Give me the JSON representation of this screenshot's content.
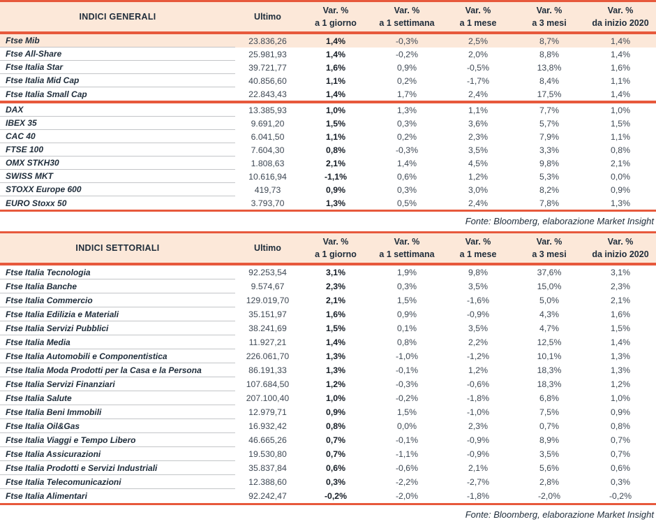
{
  "colors": {
    "accent_orange": "#e7593c",
    "header_peach": "#fce8d9",
    "highlight_row_peach": "#fce8d9",
    "text_dark_navy": "#1e2c3a",
    "divider_gray": "#c3c5c8"
  },
  "tables": [
    {
      "title": "INDICI GENERALI",
      "ultimo_header": "Ultimo",
      "var_headers": [
        {
          "top": "Var. %",
          "bottom": "a 1 giorno"
        },
        {
          "top": "Var. %",
          "bottom": "a 1 settimana"
        },
        {
          "top": "Var. %",
          "bottom": "a 1 mese"
        },
        {
          "top": "Var. %",
          "bottom": "a 3 mesi"
        },
        {
          "top": "Var. %",
          "bottom": "da inizio 2020"
        }
      ],
      "source": "Fonte: Bloomberg, elaborazione Market Insight",
      "groups": [
        {
          "rows": [
            {
              "label": "Ftse Mib",
              "ultimo": "23.836,26",
              "values": [
                "1,4%",
                "-0,3%",
                "2,5%",
                "8,7%",
                "1,4%"
              ],
              "highlight": true
            },
            {
              "label": "Ftse All-Share",
              "ultimo": "25.981,93",
              "values": [
                "1,4%",
                "-0,2%",
                "2,0%",
                "8,8%",
                "1,4%"
              ]
            },
            {
              "label": "Ftse Italia Star",
              "ultimo": "39.721,77",
              "values": [
                "1,6%",
                "0,9%",
                "-0,5%",
                "13,8%",
                "1,6%"
              ]
            },
            {
              "label": "Ftse Italia Mid Cap",
              "ultimo": "40.856,60",
              "values": [
                "1,1%",
                "0,2%",
                "-1,7%",
                "8,4%",
                "1,1%"
              ]
            },
            {
              "label": "Ftse Italia Small Cap",
              "ultimo": "22.843,43",
              "values": [
                "1,4%",
                "1,7%",
                "2,4%",
                "17,5%",
                "1,4%"
              ]
            }
          ]
        },
        {
          "rows": [
            {
              "label": "DAX",
              "ultimo": "13.385,93",
              "values": [
                "1,0%",
                "1,3%",
                "1,1%",
                "7,7%",
                "1,0%"
              ]
            },
            {
              "label": "IBEX 35",
              "ultimo": "9.691,20",
              "values": [
                "1,5%",
                "0,3%",
                "3,6%",
                "5,7%",
                "1,5%"
              ]
            },
            {
              "label": "CAC 40",
              "ultimo": "6.041,50",
              "values": [
                "1,1%",
                "0,2%",
                "2,3%",
                "7,9%",
                "1,1%"
              ]
            },
            {
              "label": "FTSE 100",
              "ultimo": "7.604,30",
              "values": [
                "0,8%",
                "-0,3%",
                "3,5%",
                "3,3%",
                "0,8%"
              ]
            },
            {
              "label": "OMX STKH30",
              "ultimo": "1.808,63",
              "values": [
                "2,1%",
                "1,4%",
                "4,5%",
                "9,8%",
                "2,1%"
              ]
            },
            {
              "label": "SWISS MKT",
              "ultimo": "10.616,94",
              "values": [
                "-1,1%",
                "0,6%",
                "1,2%",
                "5,3%",
                "0,0%"
              ]
            },
            {
              "label": "STOXX Europe 600",
              "ultimo": "419,73",
              "values": [
                "0,9%",
                "0,3%",
                "3,0%",
                "8,2%",
                "0,9%"
              ]
            },
            {
              "label": "EURO Stoxx 50",
              "ultimo": "3.793,70",
              "values": [
                "1,3%",
                "0,5%",
                "2,4%",
                "7,8%",
                "1,3%"
              ]
            }
          ]
        }
      ]
    },
    {
      "title": "INDICI SETTORIALI",
      "ultimo_header": "Ultimo",
      "var_headers": [
        {
          "top": "Var. %",
          "bottom": "a 1 giorno"
        },
        {
          "top": "Var. %",
          "bottom": "a 1 settimana"
        },
        {
          "top": "Var. %",
          "bottom": "a 1 mese"
        },
        {
          "top": "Var. %",
          "bottom": "a 3 mesi"
        },
        {
          "top": "Var. %",
          "bottom": "da inizio 2020"
        }
      ],
      "source": "Fonte: Bloomberg, elaborazione Market Insight",
      "groups": [
        {
          "rows": [
            {
              "label": "Ftse Italia Tecnologia",
              "ultimo": "92.253,54",
              "values": [
                "3,1%",
                "1,9%",
                "9,8%",
                "37,6%",
                "3,1%"
              ]
            },
            {
              "label": "Ftse Italia Banche",
              "ultimo": "9.574,67",
              "values": [
                "2,3%",
                "0,3%",
                "3,5%",
                "15,0%",
                "2,3%"
              ]
            },
            {
              "label": "Ftse Italia Commercio",
              "ultimo": "129.019,70",
              "values": [
                "2,1%",
                "1,5%",
                "-1,6%",
                "5,0%",
                "2,1%"
              ]
            },
            {
              "label": "Ftse Italia Edilizia e Materiali",
              "ultimo": "35.151,97",
              "values": [
                "1,6%",
                "0,9%",
                "-0,9%",
                "4,3%",
                "1,6%"
              ]
            },
            {
              "label": "Ftse Italia Servizi Pubblici",
              "ultimo": "38.241,69",
              "values": [
                "1,5%",
                "0,1%",
                "3,5%",
                "4,7%",
                "1,5%"
              ]
            },
            {
              "label": "Ftse Italia Media",
              "ultimo": "11.927,21",
              "values": [
                "1,4%",
                "0,8%",
                "2,2%",
                "12,5%",
                "1,4%"
              ]
            },
            {
              "label": "Ftse Italia Automobili e Componentistica",
              "ultimo": "226.061,70",
              "values": [
                "1,3%",
                "-1,0%",
                "-1,2%",
                "10,1%",
                "1,3%"
              ]
            },
            {
              "label": "Ftse Italia Moda Prodotti per la Casa e la Persona",
              "ultimo": "86.191,33",
              "values": [
                "1,3%",
                "-0,1%",
                "1,2%",
                "18,3%",
                "1,3%"
              ]
            },
            {
              "label": "Ftse Italia Servizi Finanziari",
              "ultimo": "107.684,50",
              "values": [
                "1,2%",
                "-0,3%",
                "-0,6%",
                "18,3%",
                "1,2%"
              ]
            },
            {
              "label": "Ftse Italia Salute",
              "ultimo": "207.100,40",
              "values": [
                "1,0%",
                "-0,2%",
                "-1,8%",
                "6,8%",
                "1,0%"
              ]
            },
            {
              "label": "Ftse Italia Beni Immobili",
              "ultimo": "12.979,71",
              "values": [
                "0,9%",
                "1,5%",
                "-1,0%",
                "7,5%",
                "0,9%"
              ]
            },
            {
              "label": "Ftse Italia Oil&Gas",
              "ultimo": "16.932,42",
              "values": [
                "0,8%",
                "0,0%",
                "2,3%",
                "0,7%",
                "0,8%"
              ]
            },
            {
              "label": "Ftse Italia Viaggi e Tempo Libero",
              "ultimo": "46.665,26",
              "values": [
                "0,7%",
                "-0,1%",
                "-0,9%",
                "8,9%",
                "0,7%"
              ]
            },
            {
              "label": "Ftse Italia Assicurazioni",
              "ultimo": "19.530,80",
              "values": [
                "0,7%",
                "-1,1%",
                "-0,9%",
                "3,5%",
                "0,7%"
              ]
            },
            {
              "label": "Ftse Italia Prodotti e Servizi Industriali",
              "ultimo": "35.837,84",
              "values": [
                "0,6%",
                "-0,6%",
                "2,1%",
                "5,6%",
                "0,6%"
              ]
            },
            {
              "label": "Ftse Italia Telecomunicazioni",
              "ultimo": "12.388,60",
              "values": [
                "0,3%",
                "-2,2%",
                "-2,7%",
                "2,8%",
                "0,3%"
              ]
            },
            {
              "label": "Ftse Italia Alimentari",
              "ultimo": "92.242,47",
              "values": [
                "-0,2%",
                "-2,0%",
                "-1,8%",
                "-2,0%",
                "-0,2%"
              ]
            }
          ]
        }
      ]
    }
  ]
}
